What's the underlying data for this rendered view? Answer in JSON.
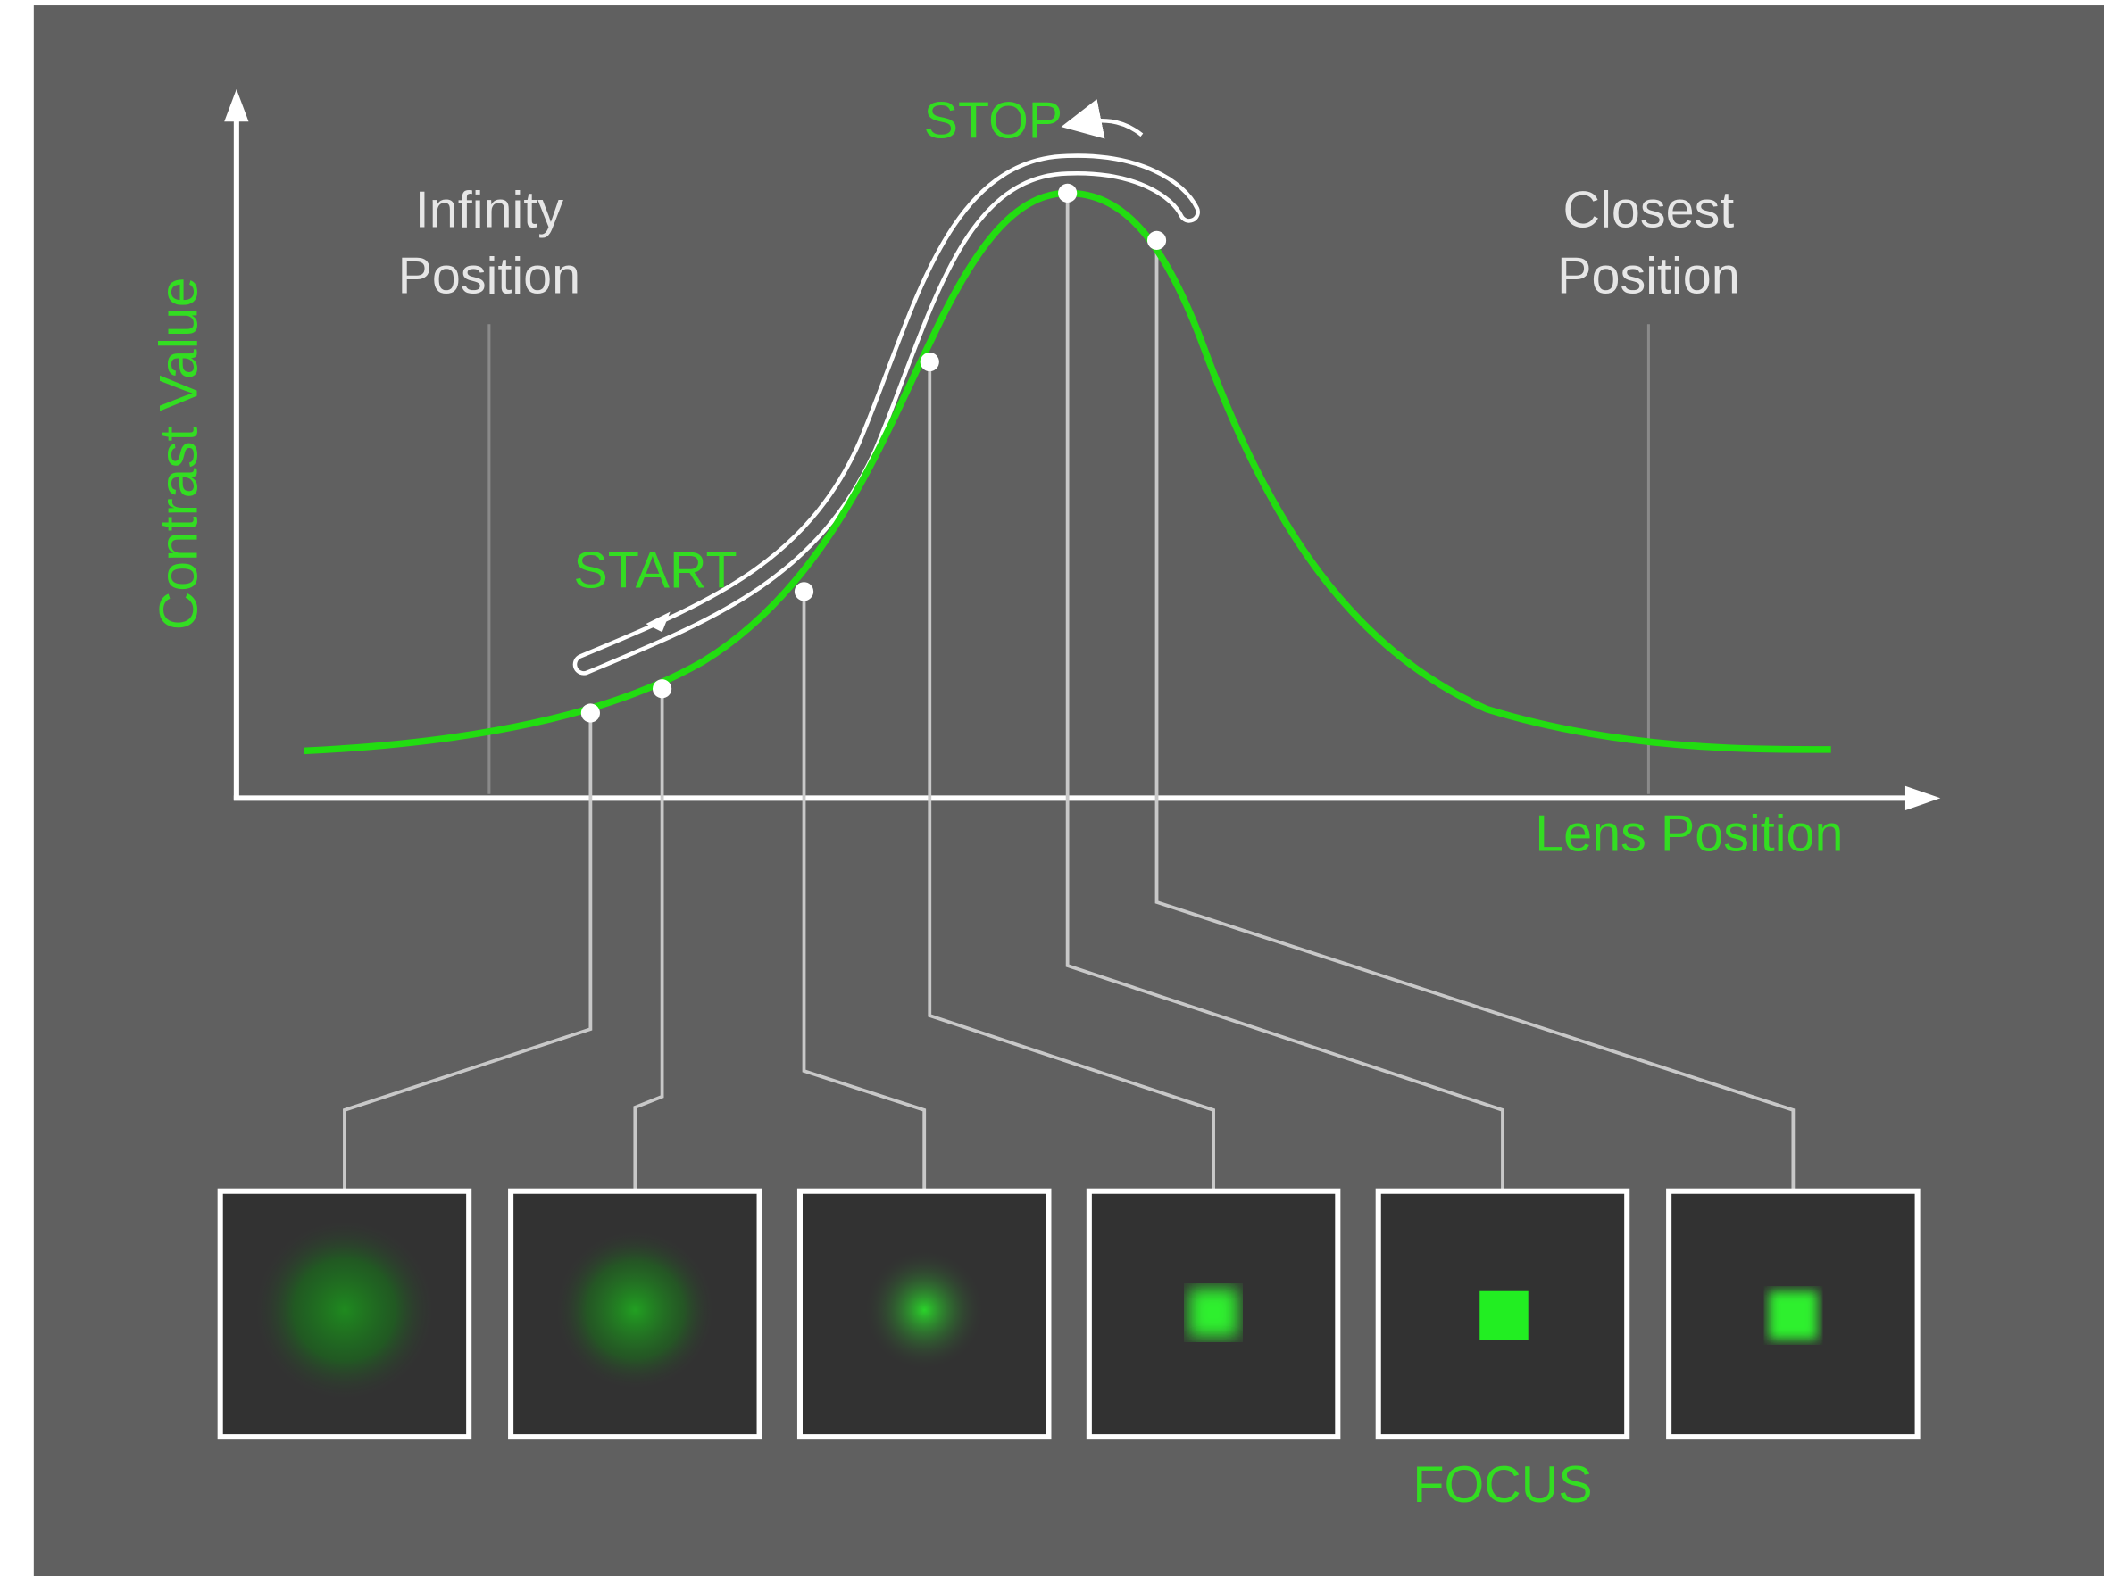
{
  "y_axis_label": "Contrast Value",
  "x_axis_label": "Lens Position",
  "infinity_label": [
    "Infinity",
    "Position"
  ],
  "closest_label": [
    "Closest",
    "Position"
  ],
  "start_label": "START",
  "stop_label": "STOP",
  "focus_label": "FOCUS"
}
